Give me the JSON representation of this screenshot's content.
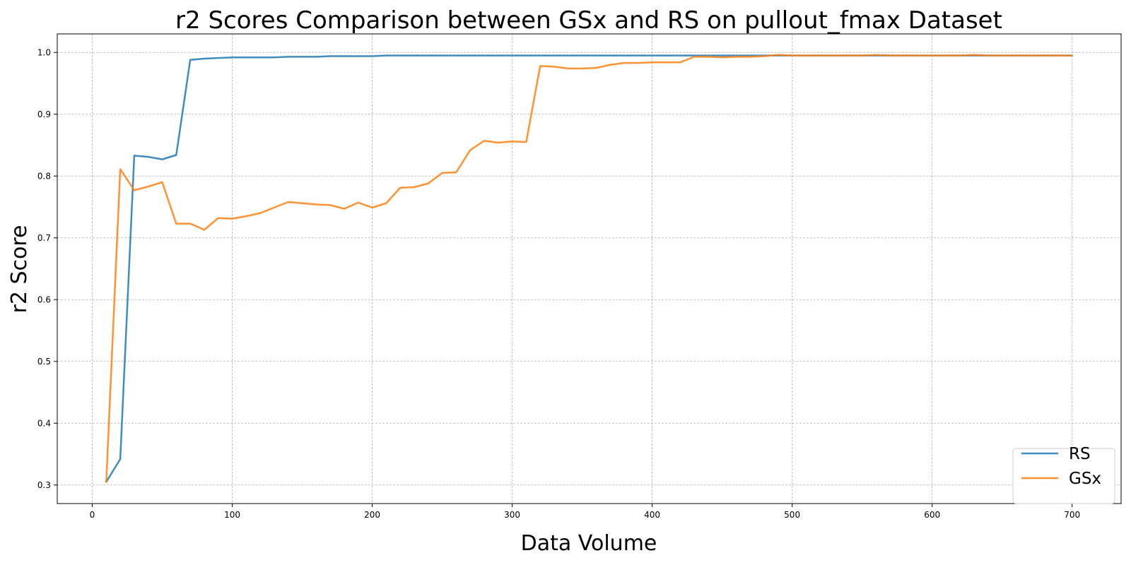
{
  "chart_data": {
    "type": "line",
    "title": "r2 Scores Comparison between GSx and RS on pullout_fmax Dataset",
    "xlabel": "Data Volume",
    "ylabel": "r2 Score",
    "xlim": [
      -25,
      735
    ],
    "ylim": [
      0.27,
      1.03
    ],
    "xticks": [
      0,
      100,
      200,
      300,
      400,
      500,
      600,
      700
    ],
    "yticks": [
      0.3,
      0.4,
      0.5,
      0.6,
      0.7,
      0.8,
      0.9,
      1.0
    ],
    "xtick_labels": [
      "0",
      "100",
      "200",
      "300",
      "400",
      "500",
      "600",
      "700"
    ],
    "ytick_labels": [
      "0.3",
      "0.4",
      "0.5",
      "0.6",
      "0.7",
      "0.8",
      "0.9",
      "1.0"
    ],
    "grid": true,
    "legend_position": "bottom-right",
    "x": [
      10,
      20,
      30,
      40,
      50,
      60,
      70,
      80,
      90,
      100,
      110,
      120,
      130,
      140,
      150,
      160,
      170,
      180,
      190,
      200,
      210,
      220,
      230,
      240,
      250,
      260,
      270,
      280,
      290,
      300,
      310,
      320,
      330,
      340,
      350,
      360,
      370,
      380,
      390,
      400,
      410,
      420,
      430,
      440,
      450,
      460,
      470,
      480,
      490,
      500,
      510,
      520,
      530,
      540,
      550,
      560,
      570,
      580,
      590,
      600,
      610,
      620,
      630,
      640,
      650,
      660,
      670,
      680,
      690,
      700
    ],
    "series": [
      {
        "name": "RS",
        "color": "#1f77b4",
        "values": [
          0.305,
          0.342,
          0.833,
          0.831,
          0.827,
          0.834,
          0.988,
          0.99,
          0.991,
          0.992,
          0.992,
          0.992,
          0.992,
          0.993,
          0.993,
          0.993,
          0.994,
          0.994,
          0.994,
          0.994,
          0.995,
          0.995,
          0.995,
          0.995,
          0.995,
          0.995,
          0.995,
          0.995,
          0.995,
          0.995,
          0.995,
          0.995,
          0.995,
          0.995,
          0.995,
          0.995,
          0.995,
          0.995,
          0.995,
          0.995,
          0.995,
          0.995,
          0.995,
          0.995,
          0.995,
          0.995,
          0.995,
          0.995,
          0.995,
          0.995,
          0.995,
          0.995,
          0.995,
          0.995,
          0.995,
          0.995,
          0.995,
          0.995,
          0.995,
          0.995,
          0.995,
          0.995,
          0.995,
          0.995,
          0.995,
          0.995,
          0.995,
          0.995,
          0.995,
          0.995
        ]
      },
      {
        "name": "GSx",
        "color": "#ff7f0e",
        "values": [
          0.305,
          0.811,
          0.777,
          0.783,
          0.79,
          0.723,
          0.723,
          0.713,
          0.732,
          0.731,
          0.735,
          0.74,
          0.749,
          0.758,
          0.756,
          0.754,
          0.753,
          0.747,
          0.757,
          0.749,
          0.756,
          0.781,
          0.782,
          0.788,
          0.805,
          0.806,
          0.842,
          0.857,
          0.854,
          0.856,
          0.855,
          0.978,
          0.977,
          0.974,
          0.974,
          0.975,
          0.98,
          0.983,
          0.983,
          0.984,
          0.984,
          0.984,
          0.993,
          0.993,
          0.992,
          0.993,
          0.993,
          0.994,
          0.996,
          0.995,
          0.995,
          0.995,
          0.995,
          0.995,
          0.995,
          0.996,
          0.995,
          0.995,
          0.995,
          0.995,
          0.995,
          0.995,
          0.996,
          0.995,
          0.995,
          0.995,
          0.995,
          0.995,
          0.995,
          0.995
        ]
      }
    ]
  }
}
